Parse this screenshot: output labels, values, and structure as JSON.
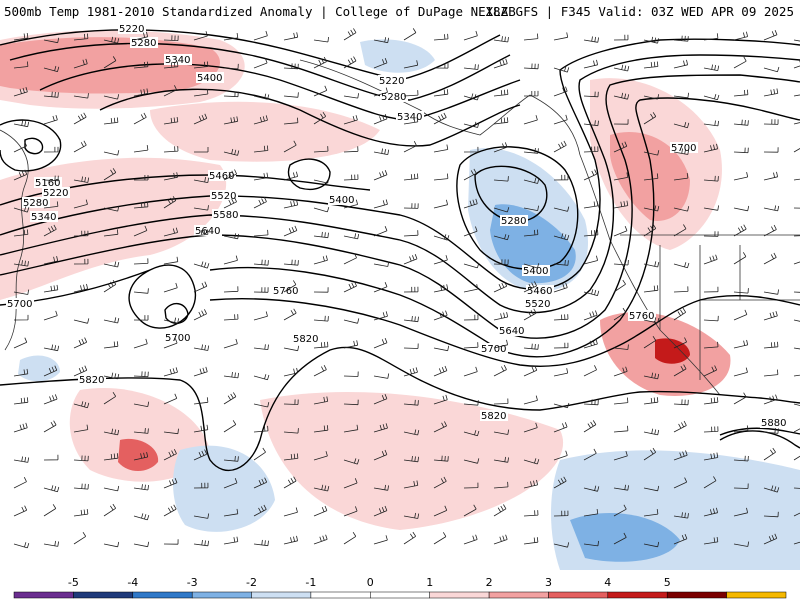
{
  "header": {
    "title_left": "500mb Temp 1981-2010 Standardized Anomaly | College of DuPage NEXLAB",
    "title_right": "18Z GFS | F345 Valid: 03Z WED APR 09 2025"
  },
  "colors": {
    "neg5": "#6a2d8f",
    "neg4": "#1f3a7a",
    "neg3": "#2f78c8",
    "neg2": "#7eb1e4",
    "neg1": "#cddff2",
    "zero_lo": "#ffffff",
    "zero_hi": "#ffffff",
    "pos1": "#fad7d7",
    "pos2": "#f2a1a1",
    "pos3": "#e46060",
    "pos4": "#c41a1a",
    "pos5": "#7a0000",
    "pos_max": "#f5b800"
  },
  "colorbar": {
    "ticks": [
      "-5",
      "-4",
      "-3",
      "-2",
      "-1",
      "0",
      "1",
      "2",
      "3",
      "4",
      "5"
    ]
  },
  "contour_labels": [
    "5220",
    "5280",
    "5340",
    "5400",
    "5220",
    "5280",
    "5340",
    "5160",
    "5220",
    "5280",
    "5340",
    "5460",
    "5520",
    "5580",
    "5640",
    "5400",
    "5280",
    "5400",
    "5460",
    "5520",
    "5640",
    "5700",
    "5700",
    "5700",
    "5760",
    "5700",
    "5820",
    "5760",
    "5820",
    "5820",
    "5880"
  ]
}
